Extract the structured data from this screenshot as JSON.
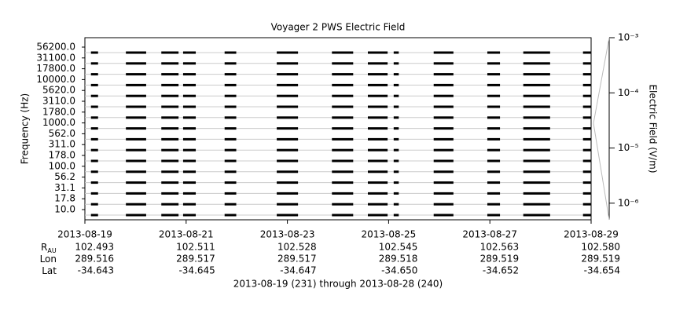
{
  "chart_data": {
    "type": "segments",
    "title": "Voyager 2 PWS Electric Field",
    "ylabel": "Frequency (Hz)",
    "categories": [
      "56200.0",
      "31100.0",
      "17800.0",
      "10000.0",
      "5620.0",
      "3110.0",
      "1780.0",
      "1000.0",
      "562.0",
      "311.0",
      "178.0",
      "100.0",
      "56.2",
      "31.1",
      "17.8",
      "10.0"
    ],
    "segments": [
      [
        231.12,
        231.26
      ],
      [
        231.81,
        232.21
      ],
      [
        232.51,
        232.85
      ],
      [
        232.94,
        233.19
      ],
      [
        233.76,
        233.99
      ],
      [
        234.79,
        235.21
      ],
      [
        235.88,
        236.3
      ],
      [
        236.59,
        236.98
      ],
      [
        237.1,
        237.2
      ],
      [
        237.89,
        238.28
      ],
      [
        238.95,
        239.2
      ],
      [
        239.66,
        240.19
      ],
      [
        240.84,
        241.0
      ]
    ],
    "color": "#000000",
    "xlim": [
      231,
      241
    ],
    "xticks": [
      {
        "value": 231,
        "label": "2013-08-19"
      },
      {
        "value": 233,
        "label": "2013-08-21"
      },
      {
        "value": 235,
        "label": "2013-08-23"
      },
      {
        "value": 237,
        "label": "2013-08-25"
      },
      {
        "value": 239,
        "label": "2013-08-27"
      },
      {
        "value": 241,
        "label": "2013-08-29"
      }
    ],
    "y2label": "Electric Field (V/m)",
    "y2scale": "log",
    "y2lim": [
      5e-07,
      0.001
    ],
    "y2ticks": [
      {
        "value": 0.001,
        "label": "10⁻³"
      },
      {
        "value": 0.0001,
        "label": "10⁻⁴"
      },
      {
        "value": 1e-05,
        "label": "10⁻⁵"
      },
      {
        "value": 1e-06,
        "label": "10⁻⁶"
      }
    ],
    "grid": true,
    "ephemeris": [
      {
        "label": "R",
        "sub": "AU",
        "values": [
          "102.493",
          "102.511",
          "102.528",
          "102.545",
          "102.563",
          "102.580"
        ]
      },
      {
        "label": "Lon",
        "values": [
          "289.516",
          "289.517",
          "289.517",
          "289.518",
          "289.519",
          "289.519"
        ]
      },
      {
        "label": "Lat",
        "values": [
          "-34.643",
          "-34.645",
          "-34.647",
          "-34.650",
          "-34.652",
          "-34.654"
        ]
      }
    ],
    "footer": "2013-08-19 (231) through 2013-08-28 (240)"
  }
}
